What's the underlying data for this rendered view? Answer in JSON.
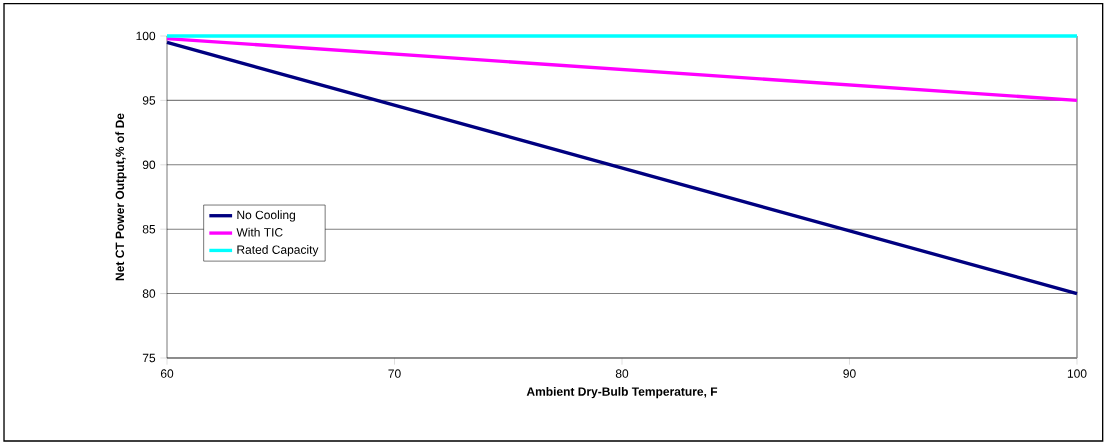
{
  "chart_data": {
    "type": "line",
    "xlabel": "Ambient Dry-Bulb Temperature, F",
    "ylabel": "Net CT Power Output,% of De",
    "x": [
      60,
      100
    ],
    "series": [
      {
        "name": "No Cooling",
        "color": "#000080",
        "values": [
          99.5,
          80
        ]
      },
      {
        "name": "With TIC",
        "color": "#ff00ff",
        "values": [
          99.8,
          95
        ]
      },
      {
        "name": "Rated Capacity",
        "color": "#00ffff",
        "values": [
          100,
          100
        ]
      }
    ],
    "xlim": [
      60,
      100
    ],
    "ylim": [
      75,
      100
    ],
    "xticks": [
      60,
      70,
      80,
      90,
      100
    ],
    "yticks": [
      75,
      80,
      85,
      90,
      95,
      100
    ],
    "grid": "y",
    "legend": "left",
    "marker": "none",
    "line_style": "solid"
  }
}
